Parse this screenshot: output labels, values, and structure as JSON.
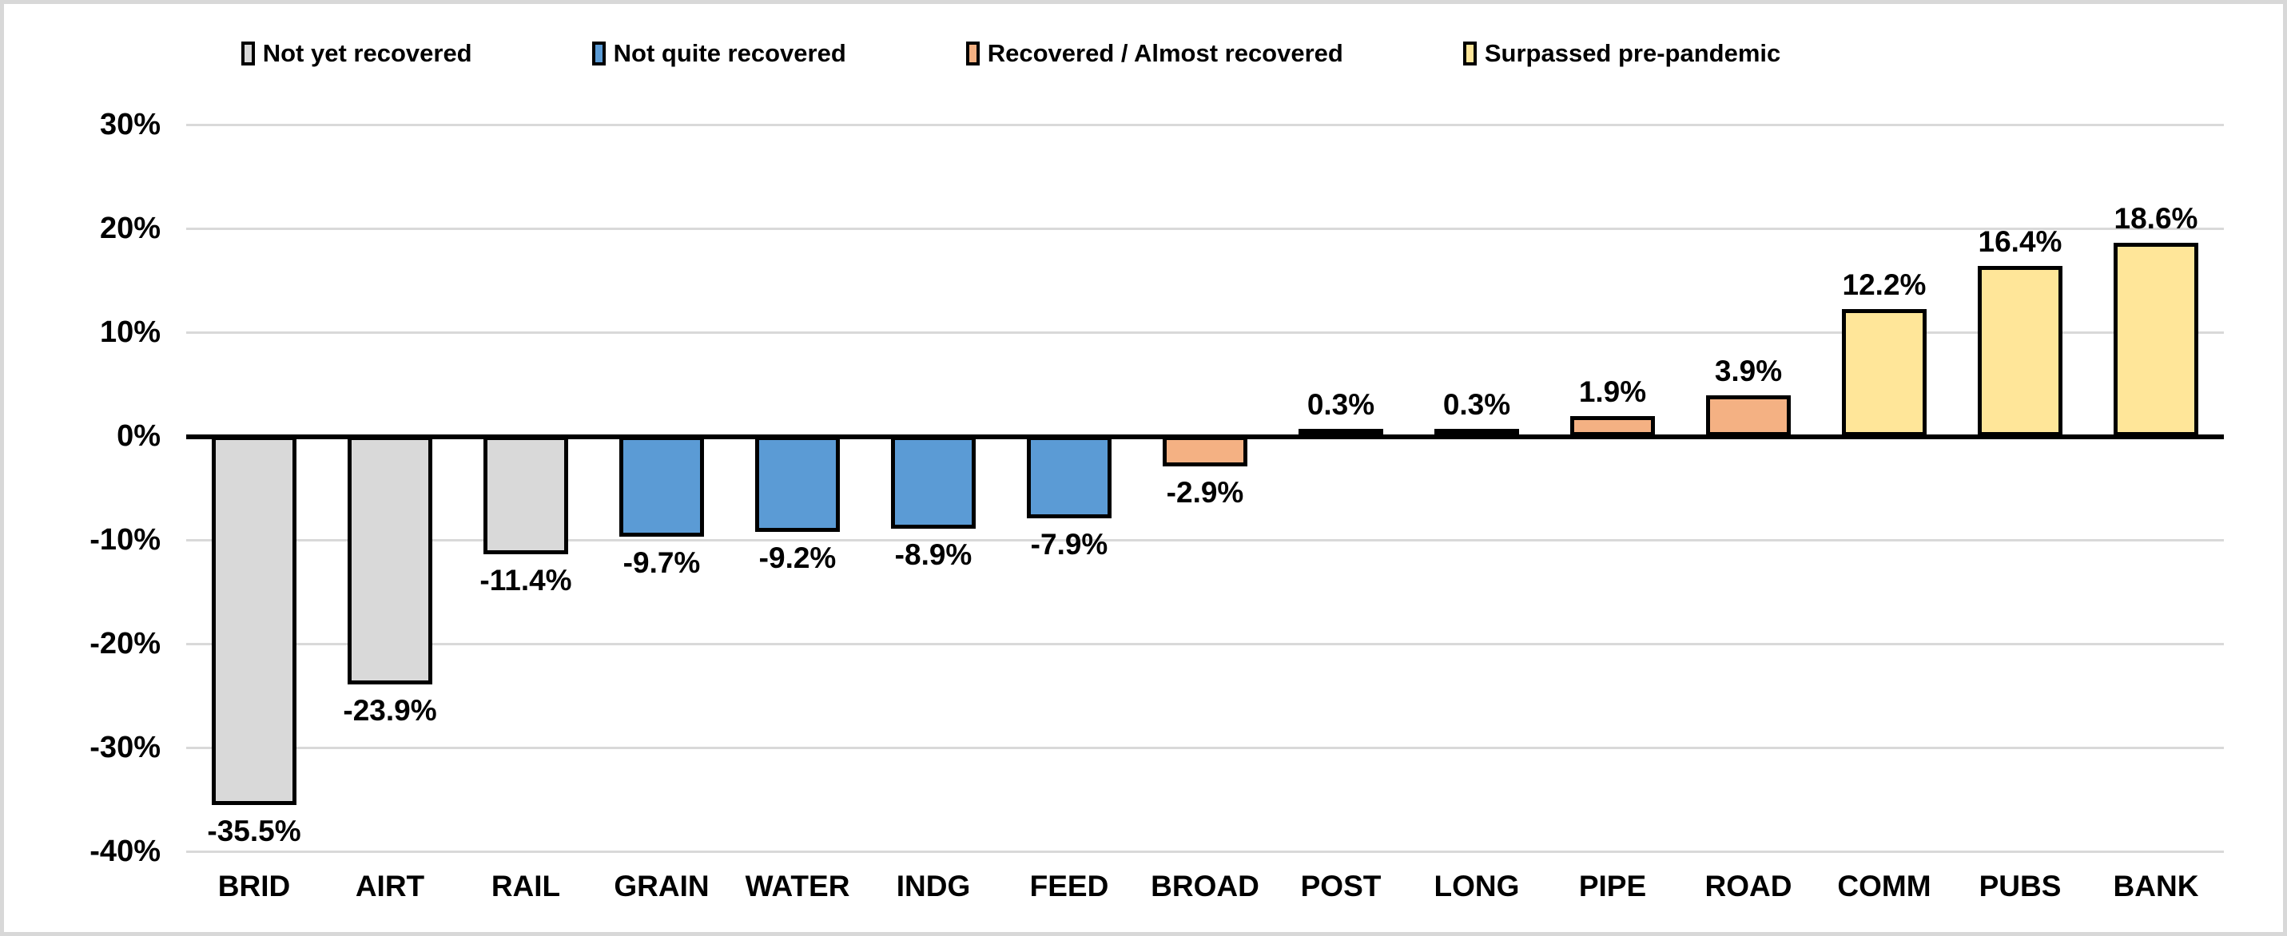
{
  "chart_data": {
    "type": "bar",
    "title": "",
    "xlabel": "",
    "ylabel": "",
    "categories": [
      "BRID",
      "AIRT",
      "RAIL",
      "GRAIN",
      "WATER",
      "INDG",
      "FEED",
      "BROAD",
      "POST",
      "LONG",
      "PIPE",
      "ROAD",
      "COMM",
      "PUBS",
      "BANK"
    ],
    "values": [
      -35.5,
      -23.9,
      -11.4,
      -9.7,
      -9.2,
      -8.9,
      -7.9,
      -2.9,
      0.3,
      0.3,
      1.9,
      3.9,
      12.2,
      16.4,
      18.6
    ],
    "value_labels": [
      "-35.5%",
      "-23.9%",
      "-11.4%",
      "-9.7%",
      "-9.2%",
      "-8.9%",
      "-7.9%",
      "-2.9%",
      "0.3%",
      "0.3%",
      "1.9%",
      "3.9%",
      "12.2%",
      "16.4%",
      "18.6%"
    ],
    "bar_groups": [
      "not_yet",
      "not_yet",
      "not_yet",
      "not_quite",
      "not_quite",
      "not_quite",
      "not_quite",
      "recovered",
      "recovered",
      "recovered",
      "recovered",
      "recovered",
      "surpassed",
      "surpassed",
      "surpassed"
    ],
    "series_colors": {
      "not_yet": "#d9d9d9",
      "not_quite": "#5b9bd5",
      "recovered": "#f4b183",
      "surpassed": "#ffe699"
    },
    "legend": [
      {
        "label": "Not yet recovered",
        "group": "not_yet"
      },
      {
        "label": "Not quite recovered",
        "group": "not_quite"
      },
      {
        "label": "Recovered / Almost recovered",
        "group": "recovered"
      },
      {
        "label": "Surpassed pre-pandemic",
        "group": "surpassed"
      }
    ],
    "legend_position": "top",
    "y_axis": {
      "min": -40,
      "max": 30,
      "tick_step": 10,
      "ticks": [
        {
          "label": "30%",
          "value": 30
        },
        {
          "label": "20%",
          "value": 20
        },
        {
          "label": "10%",
          "value": 10
        },
        {
          "label": "0%",
          "value": 0
        },
        {
          "label": "-10%",
          "value": -10
        },
        {
          "label": "-20%",
          "value": -20
        },
        {
          "label": "-30%",
          "value": -30
        },
        {
          "label": "-40%",
          "value": -40
        }
      ],
      "grid": true
    },
    "styling": {
      "bar_border_color": "#000000",
      "gridline_color": "#d9d9d9",
      "axis_line_color": "#000000",
      "background_color": "#ffffff",
      "frame_border_color": "#d8d8d8",
      "text_color": "#000000"
    }
  }
}
